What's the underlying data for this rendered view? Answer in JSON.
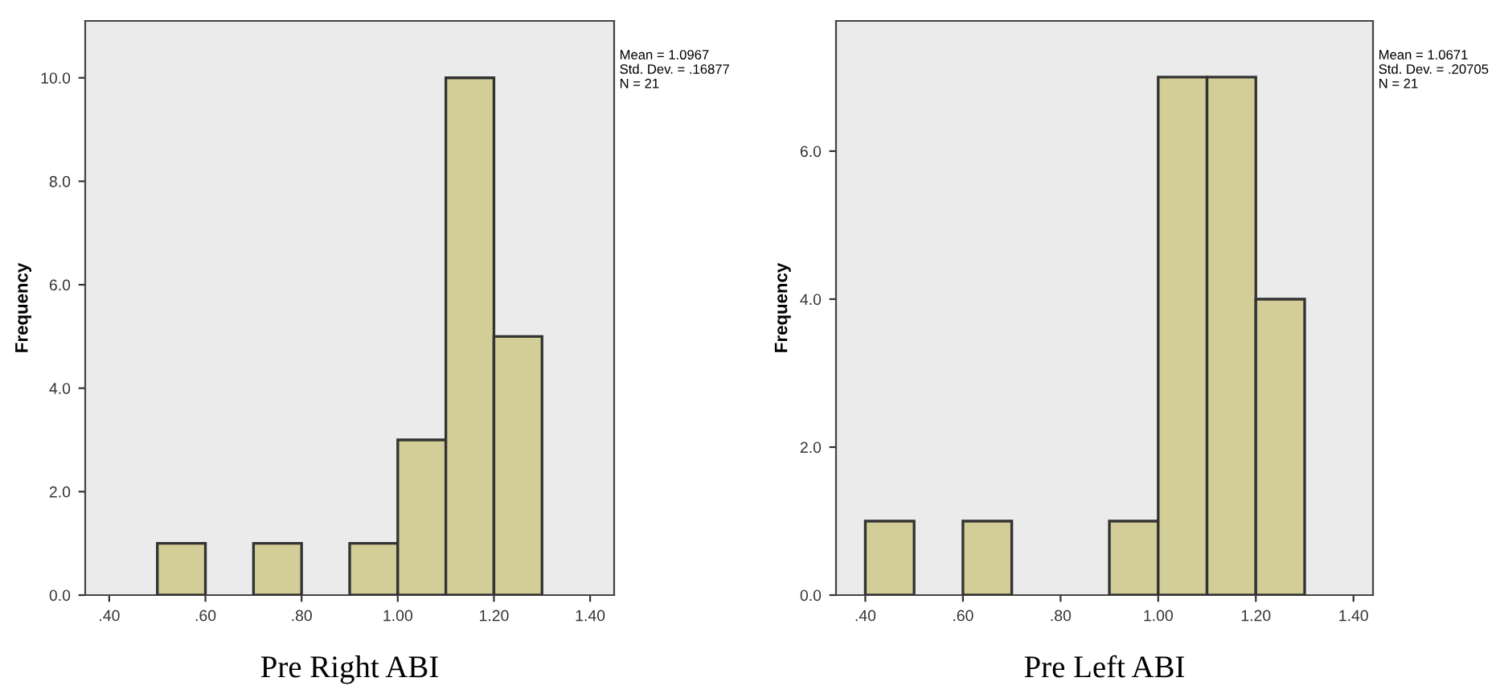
{
  "chart_data": [
    {
      "type": "histogram",
      "xlabel": "Pre Right ABI",
      "ylabel": "Frequency",
      "color": "#d3cd97",
      "bins": [
        0.5,
        0.6,
        0.7,
        0.8,
        0.9,
        1.0,
        1.1,
        1.2,
        1.3
      ],
      "values": [
        1,
        0,
        1,
        0,
        1,
        3,
        10,
        5
      ],
      "xlim": [
        0.35,
        1.45
      ],
      "ylim": [
        0,
        11.1
      ],
      "xticks": [
        {
          "value": 0.4,
          "label": ".40"
        },
        {
          "value": 0.6,
          "label": ".60"
        },
        {
          "value": 0.8,
          "label": ".80"
        },
        {
          "value": 1.0,
          "label": "1.00"
        },
        {
          "value": 1.2,
          "label": "1.20"
        },
        {
          "value": 1.4,
          "label": "1.40"
        }
      ],
      "yticks": [
        {
          "value": 0,
          "label": "0.0"
        },
        {
          "value": 2,
          "label": "2.0"
        },
        {
          "value": 4,
          "label": "4.0"
        },
        {
          "value": 6,
          "label": "6.0"
        },
        {
          "value": 8,
          "label": "8.0"
        },
        {
          "value": 10,
          "label": "10.0"
        }
      ],
      "annotations": [
        "Mean = 1.0967",
        "Std. Dev. = .16877",
        "N = 21"
      ],
      "grid": false
    },
    {
      "type": "histogram",
      "xlabel": "Pre Left ABI",
      "ylabel": "Frequency",
      "color": "#d3cd97",
      "bins": [
        0.4,
        0.5,
        0.6,
        0.7,
        0.8,
        0.9,
        1.0,
        1.1,
        1.2,
        1.3
      ],
      "values": [
        1,
        0,
        1,
        0,
        0,
        1,
        7,
        7,
        4
      ],
      "xlim": [
        0.34,
        1.44
      ],
      "ylim": [
        0,
        7.76
      ],
      "xticks": [
        {
          "value": 0.4,
          "label": ".40"
        },
        {
          "value": 0.6,
          "label": ".60"
        },
        {
          "value": 0.8,
          "label": ".80"
        },
        {
          "value": 1.0,
          "label": "1.00"
        },
        {
          "value": 1.2,
          "label": "1.20"
        },
        {
          "value": 1.4,
          "label": "1.40"
        }
      ],
      "yticks": [
        {
          "value": 0,
          "label": "0.0"
        },
        {
          "value": 2,
          "label": "2.0"
        },
        {
          "value": 4,
          "label": "4.0"
        },
        {
          "value": 6,
          "label": "6.0"
        }
      ],
      "annotations": [
        "Mean = 1.0671",
        "Std. Dev. = .20705",
        "N = 21"
      ],
      "grid": false
    }
  ]
}
